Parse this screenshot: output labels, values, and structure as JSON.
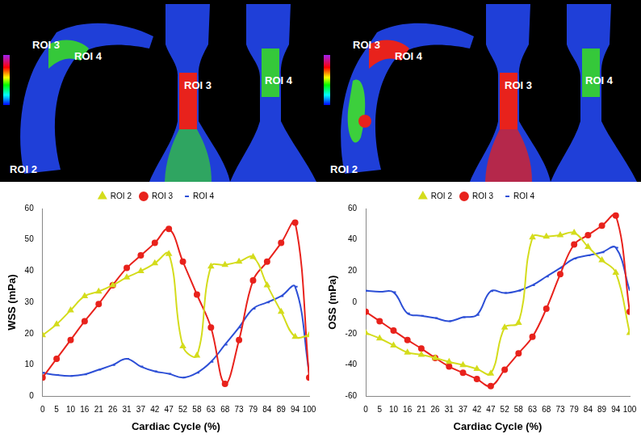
{
  "chart_data": [
    {
      "type": "line",
      "annotations": [
        "ROI 3",
        "ROI 4",
        "ROI 3",
        "ROI 4",
        "ROI 2"
      ],
      "x_label": "Cardiac Cycle (%)",
      "y_label": "WSS (mPa)",
      "categories": [
        0,
        5,
        10,
        16,
        21,
        26,
        31,
        37,
        42,
        47,
        52,
        58,
        63,
        68,
        73,
        79,
        84,
        89,
        94,
        100
      ],
      "series": [
        {
          "name": "ROI 2",
          "color": "#d4dc1c",
          "marker": "triangle",
          "values": [
            19.5,
            23,
            27.5,
            32,
            33.5,
            35.5,
            38,
            40,
            42.5,
            45.5,
            16,
            13,
            41.5,
            42,
            43,
            44.5,
            35.5,
            27,
            19,
            19.5
          ]
        },
        {
          "name": "ROI 3",
          "color": "#e8221c",
          "marker": "circle",
          "values": [
            6,
            12,
            18,
            24,
            29.5,
            35.5,
            41,
            45,
            49,
            53.5,
            43,
            32.5,
            22,
            4,
            18,
            37,
            43,
            49,
            55.5,
            6
          ]
        },
        {
          "name": "ROI 4",
          "color": "#2d4fd6",
          "marker": "dash",
          "values": [
            7.5,
            6.8,
            6.5,
            7,
            8.5,
            10,
            12,
            9.5,
            8,
            7.2,
            6,
            7.5,
            11,
            16.5,
            22,
            28,
            30,
            32,
            35,
            7.5
          ]
        }
      ],
      "ylim": [
        0,
        60
      ],
      "yticks": [
        0,
        10,
        20,
        30,
        40,
        50,
        60
      ],
      "grid": false,
      "legend": "top"
    },
    {
      "type": "line",
      "annotations": [
        "ROI 3",
        "ROI 4",
        "ROI 3",
        "ROI 4",
        "ROI 2"
      ],
      "x_label": "Cardiac Cycle (%)",
      "y_label": "OSS (mPa)",
      "categories": [
        0,
        5,
        10,
        16,
        21,
        26,
        31,
        37,
        42,
        47,
        52,
        58,
        63,
        68,
        73,
        79,
        84,
        89,
        94,
        100
      ],
      "series": [
        {
          "name": "ROI 2",
          "color": "#d4dc1c",
          "marker": "triangle",
          "values": [
            -19.5,
            -23,
            -27.5,
            -32,
            -33.5,
            -35.5,
            -38,
            -40,
            -42.5,
            -45.5,
            -16,
            -13,
            41.5,
            42,
            43,
            44.5,
            35.5,
            27,
            19,
            -19.5
          ]
        },
        {
          "name": "ROI 3",
          "color": "#e8221c",
          "marker": "circle",
          "values": [
            -6,
            -12,
            -18,
            -24,
            -29.5,
            -35.5,
            -41,
            -45,
            -49,
            -53.5,
            -43,
            -32.5,
            -22,
            -4,
            18,
            37,
            43,
            49,
            55.5,
            -6
          ]
        },
        {
          "name": "ROI 4",
          "color": "#2d4fd6",
          "marker": "dash",
          "values": [
            7.5,
            6.8,
            6.5,
            -7,
            -8.5,
            -10,
            -12,
            -9.5,
            -8,
            7.2,
            6,
            7.5,
            11,
            16.5,
            22,
            28,
            30,
            32,
            35,
            7.5
          ]
        }
      ],
      "ylim": [
        -60,
        60
      ],
      "yticks": [
        -60,
        -40,
        -20,
        0,
        20,
        40,
        60
      ],
      "grid": false,
      "legend": "top"
    }
  ]
}
